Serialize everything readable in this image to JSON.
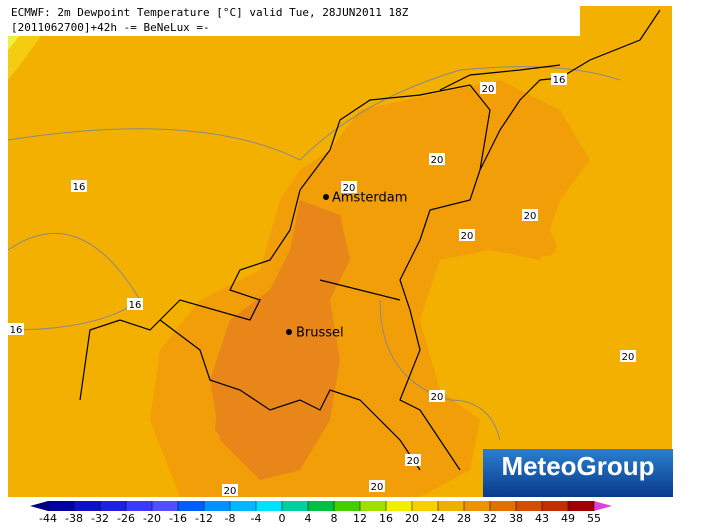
{
  "header": {
    "line1": "ECMWF: 2m Dewpoint Temperature [°C] valid Tue, 28JUN2011 18Z",
    "line2": "[2011062700]+42h  -= BeNeLux =-"
  },
  "cities": [
    {
      "name": "Amsterdam"
    },
    {
      "name": "Brussel"
    }
  ],
  "contour_labels": [
    20,
    16,
    20,
    20,
    16,
    20,
    20,
    16,
    16,
    20,
    20,
    20,
    20,
    20
  ],
  "logo": "MeteoGroup",
  "legend": {
    "ticks": [
      -44,
      -38,
      -32,
      -26,
      -20,
      -16,
      -12,
      -8,
      -4,
      0,
      4,
      8,
      12,
      16,
      20,
      24,
      28,
      32,
      38,
      43,
      49,
      55
    ],
    "colors": [
      "#000080",
      "#0000a0",
      "#1010c8",
      "#2020e0",
      "#3a3aff",
      "#5050ff",
      "#0060ff",
      "#0090ff",
      "#00b8ff",
      "#00e0ff",
      "#00d0a0",
      "#00c040",
      "#40d000",
      "#a0e000",
      "#f0f000",
      "#f8d000",
      "#f0b000",
      "#f09000",
      "#e07000",
      "#d05000",
      "#c03000",
      "#a00000",
      "#e040e0"
    ]
  }
}
